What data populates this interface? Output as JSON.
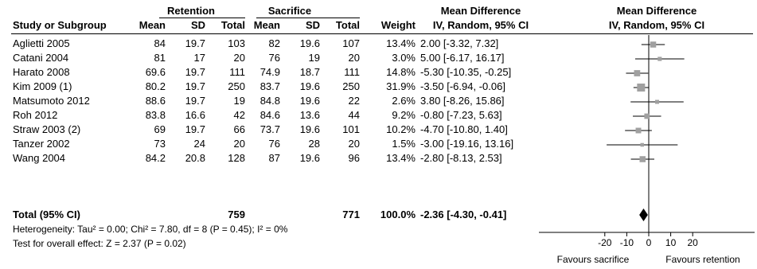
{
  "chart_data": {
    "type": "forest",
    "group_headers": {
      "experimental": "Retention",
      "control": "Sacrifice"
    },
    "columns": {
      "study": "Study or Subgroup",
      "mean": "Mean",
      "sd": "SD",
      "total": "Total",
      "weight": "Weight",
      "effect_title": "Mean Difference",
      "effect_method": "IV, Random, 95% CI"
    },
    "studies": [
      {
        "name": "Aglietti 2005",
        "e_mean": "84",
        "e_sd": "19.7",
        "e_total": "103",
        "c_mean": "82",
        "c_sd": "19.6",
        "c_total": "107",
        "weight": "13.4%",
        "ci_text": "2.00 [-3.32, 7.32]",
        "md": 2.0,
        "lo": -3.32,
        "hi": 7.32
      },
      {
        "name": "Catani 2004",
        "e_mean": "81",
        "e_sd": "17",
        "e_total": "20",
        "c_mean": "76",
        "c_sd": "19",
        "c_total": "20",
        "weight": "3.0%",
        "ci_text": "5.00 [-6.17, 16.17]",
        "md": 5.0,
        "lo": -6.17,
        "hi": 16.17
      },
      {
        "name": "Harato 2008",
        "e_mean": "69.6",
        "e_sd": "19.7",
        "e_total": "111",
        "c_mean": "74.9",
        "c_sd": "18.7",
        "c_total": "111",
        "weight": "14.8%",
        "ci_text": "-5.30 [-10.35, -0.25]",
        "md": -5.3,
        "lo": -10.35,
        "hi": -0.25
      },
      {
        "name": "Kim 2009 (1)",
        "e_mean": "80.2",
        "e_sd": "19.7",
        "e_total": "250",
        "c_mean": "83.7",
        "c_sd": "19.6",
        "c_total": "250",
        "weight": "31.9%",
        "ci_text": "-3.50 [-6.94, -0.06]",
        "md": -3.5,
        "lo": -6.94,
        "hi": -0.06
      },
      {
        "name": "Matsumoto 2012",
        "e_mean": "88.6",
        "e_sd": "19.7",
        "e_total": "19",
        "c_mean": "84.8",
        "c_sd": "19.6",
        "c_total": "22",
        "weight": "2.6%",
        "ci_text": "3.80 [-8.26, 15.86]",
        "md": 3.8,
        "lo": -8.26,
        "hi": 15.86
      },
      {
        "name": "Roh 2012",
        "e_mean": "83.8",
        "e_sd": "16.6",
        "e_total": "42",
        "c_mean": "84.6",
        "c_sd": "13.6",
        "c_total": "44",
        "weight": "9.2%",
        "ci_text": "-0.80 [-7.23, 5.63]",
        "md": -0.8,
        "lo": -7.23,
        "hi": 5.63
      },
      {
        "name": "Straw 2003 (2)",
        "e_mean": "69",
        "e_sd": "19.7",
        "e_total": "66",
        "c_mean": "73.7",
        "c_sd": "19.6",
        "c_total": "101",
        "weight": "10.2%",
        "ci_text": "-4.70 [-10.80, 1.40]",
        "md": -4.7,
        "lo": -10.8,
        "hi": 1.4
      },
      {
        "name": "Tanzer 2002",
        "e_mean": "73",
        "e_sd": "24",
        "e_total": "20",
        "c_mean": "76",
        "c_sd": "28",
        "c_total": "20",
        "weight": "1.5%",
        "ci_text": "-3.00 [-19.16, 13.16]",
        "md": -3.0,
        "lo": -19.16,
        "hi": 13.16
      },
      {
        "name": "Wang 2004",
        "e_mean": "84.2",
        "e_sd": "20.8",
        "e_total": "128",
        "c_mean": "87",
        "c_sd": "19.6",
        "c_total": "96",
        "weight": "13.4%",
        "ci_text": "-2.80 [-8.13, 2.53]",
        "md": -2.8,
        "lo": -8.13,
        "hi": 2.53
      }
    ],
    "total": {
      "label": "Total (95% CI)",
      "e_total": "759",
      "c_total": "771",
      "weight": "100.0%",
      "ci_text": "-2.36 [-4.30, -0.41]",
      "md": -2.36,
      "lo": -4.3,
      "hi": -0.41
    },
    "heterogeneity": "Heterogeneity: Tau² = 0.00; Chi² = 7.80, df = 8 (P = 0.45); I² = 0%",
    "overall_effect": "Test for overall effect: Z = 2.37 (P = 0.02)",
    "xlim": [
      -25,
      25
    ],
    "ticks": [
      -20,
      -10,
      0,
      10,
      20
    ],
    "tick_labels": [
      "-20",
      "-10",
      "0",
      "10",
      "20"
    ],
    "favours_left": "Favours sacrifice",
    "favours_right": "Favours retention",
    "marker_color": "#a0a0a0"
  }
}
